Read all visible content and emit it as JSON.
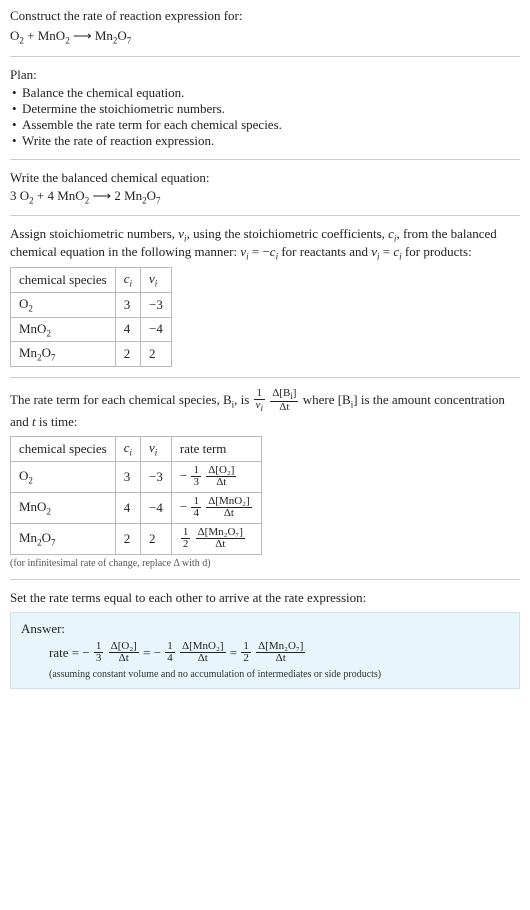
{
  "header": {
    "prompt": "Construct the rate of reaction expression for:",
    "unbalanced_lhs_1": "O",
    "unbalanced_lhs_1_sub": "2",
    "plus1": " + ",
    "unbalanced_lhs_2": "MnO",
    "unbalanced_lhs_2_sub": "2",
    "arrow": " ⟶ ",
    "unbalanced_rhs": "Mn",
    "unbalanced_rhs_sub1": "2",
    "unbalanced_rhs_mid": "O",
    "unbalanced_rhs_sub2": "7"
  },
  "plan": {
    "title": "Plan:",
    "items": [
      "Balance the chemical equation.",
      "Determine the stoichiometric numbers.",
      "Assemble the rate term for each chemical species.",
      "Write the rate of reaction expression."
    ],
    "bullet": "•"
  },
  "balanced": {
    "intro": "Write the balanced chemical equation:",
    "c1": "3 ",
    "sp1": "O",
    "sp1_sub": "2",
    "plus": " + ",
    "c2": "4 ",
    "sp2": "MnO",
    "sp2_sub": "2",
    "arrow": " ⟶ ",
    "c3": "2 ",
    "sp3a": "Mn",
    "sp3a_sub": "2",
    "sp3b": "O",
    "sp3b_sub": "7"
  },
  "stoich": {
    "intro_a": "Assign stoichiometric numbers, ",
    "nui": "ν",
    "nui_sub": "i",
    "intro_b": ", using the stoichiometric coefficients, ",
    "ci": "c",
    "ci_sub": "i",
    "intro_c": ", from the balanced chemical equation in the following manner: ",
    "rel_react_l": "ν",
    "rel_react_ls": "i",
    "rel_react_eq": " = −",
    "rel_react_r": "c",
    "rel_react_rs": "i",
    "intro_d": " for reactants and ",
    "rel_prod_l": "ν",
    "rel_prod_ls": "i",
    "rel_prod_eq": " = ",
    "rel_prod_r": "c",
    "rel_prod_rs": "i",
    "intro_e": " for products:",
    "table": {
      "headers": {
        "species": "chemical species",
        "ci": "c",
        "ci_sub": "i",
        "nui": "ν",
        "nui_sub": "i"
      },
      "rows": [
        {
          "sp_a": "O",
          "sp_a_sub": "2",
          "sp_b": "",
          "sp_b_sub": "",
          "ci": "3",
          "nui": "−3"
        },
        {
          "sp_a": "MnO",
          "sp_a_sub": "2",
          "sp_b": "",
          "sp_b_sub": "",
          "ci": "4",
          "nui": "−4"
        },
        {
          "sp_a": "Mn",
          "sp_a_sub": "2",
          "sp_b": "O",
          "sp_b_sub": "7",
          "ci": "2",
          "nui": "2"
        }
      ]
    }
  },
  "rateterm": {
    "intro_a": "The rate term for each chemical species, B",
    "intro_a_sub": "i",
    "intro_b": ", is ",
    "big_frac1_num": "1",
    "big_frac1_den_a": "ν",
    "big_frac1_den_sub": "i",
    "big_frac2_num_a": "Δ[B",
    "big_frac2_num_sub": "i",
    "big_frac2_num_b": "]",
    "big_frac2_den": "Δt",
    "intro_c": " where [B",
    "intro_c_sub": "i",
    "intro_d": "] is the amount concentration and ",
    "tvar": "t",
    "intro_e": " is time:",
    "table": {
      "headers": {
        "species": "chemical species",
        "ci": "c",
        "ci_sub": "i",
        "nui": "ν",
        "nui_sub": "i",
        "rate": "rate term"
      },
      "rows": [
        {
          "sp_a": "O",
          "sp_a_sub": "2",
          "sp_b": "",
          "sp_b_sub": "",
          "ci": "3",
          "nui": "−3",
          "sign": "−",
          "fnum": "1",
          "fden": "3",
          "dnum": "Δ[O₂]",
          "dden": "Δt"
        },
        {
          "sp_a": "MnO",
          "sp_a_sub": "2",
          "sp_b": "",
          "sp_b_sub": "",
          "ci": "4",
          "nui": "−4",
          "sign": "−",
          "fnum": "1",
          "fden": "4",
          "dnum": "Δ[MnO₂]",
          "dden": "Δt"
        },
        {
          "sp_a": "Mn",
          "sp_a_sub": "2",
          "sp_b": "O",
          "sp_b_sub": "7",
          "ci": "2",
          "nui": "2",
          "sign": "",
          "fnum": "1",
          "fden": "2",
          "dnum": "Δ[Mn₂O₇]",
          "dden": "Δt"
        }
      ]
    },
    "note": "(for infinitesimal rate of change, replace Δ with d)"
  },
  "final": {
    "intro": "Set the rate terms equal to each other to arrive at the rate expression:",
    "answer_label": "Answer:",
    "rate_word": "rate = ",
    "t1_sign": "−",
    "t1_fnum": "1",
    "t1_fden": "3",
    "t1_dnum": "Δ[O₂]",
    "t1_dden": "Δt",
    "eq1": " = ",
    "t2_sign": "−",
    "t2_fnum": "1",
    "t2_fden": "4",
    "t2_dnum": "Δ[MnO₂]",
    "t2_dden": "Δt",
    "eq2": " = ",
    "t3_sign": "",
    "t3_fnum": "1",
    "t3_fden": "2",
    "t3_dnum": "Δ[Mn₂O₇]",
    "t3_dden": "Δt",
    "note": "(assuming constant volume and no accumulation of intermediates or side products)"
  },
  "colors": {
    "answer_bg": "#e8f5fb",
    "answer_border": "#cde3ee",
    "rule": "#cccccc",
    "table_border": "#bbbbbb"
  }
}
